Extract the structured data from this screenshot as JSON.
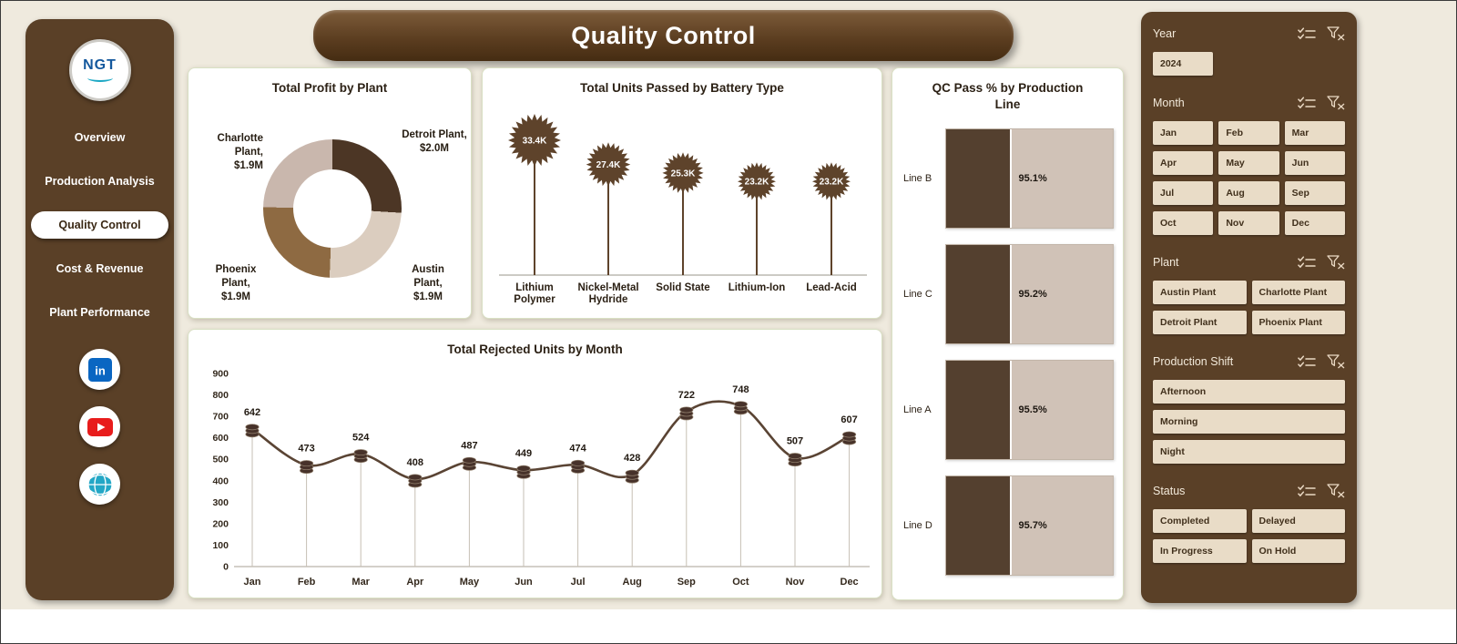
{
  "page": {
    "title": "Quality Control"
  },
  "sidebar": {
    "logo": "NGT",
    "nav": [
      {
        "label": "Overview",
        "active": false
      },
      {
        "label": "Production Analysis",
        "active": false
      },
      {
        "label": "Quality Control",
        "active": true
      },
      {
        "label": "Cost & Revenue",
        "active": false
      },
      {
        "label": "Plant Performance",
        "active": false
      }
    ],
    "social": [
      "linkedin",
      "youtube",
      "website"
    ]
  },
  "chart_data": [
    {
      "type": "pie",
      "title": "Total Profit by Plant",
      "slices": [
        {
          "label": "Detroit Plant,",
          "value_label": "$2.0M",
          "value": 2.0,
          "color": "#4c3625"
        },
        {
          "label": "Austin Plant,",
          "value_label": "$1.9M",
          "value": 1.9,
          "color": "#dbcdbf"
        },
        {
          "label": "Phoenix Plant,",
          "value_label": "$1.9M",
          "value": 1.9,
          "color": "#8e6a42"
        },
        {
          "label": "Charlotte Plant,",
          "value_label": "$1.9M",
          "value": 1.9,
          "color": "#c9b7ad"
        }
      ]
    },
    {
      "type": "lollipop",
      "title": "Total Units Passed by Battery Type",
      "categories": [
        "Lithium Polymer",
        "Nickel-Metal Hydride",
        "Solid State",
        "Lithium-Ion",
        "Lead-Acid"
      ],
      "values": [
        33400,
        27400,
        25300,
        23200,
        23200
      ],
      "value_labels": [
        "33.4K",
        "27.4K",
        "25.3K",
        "23.2K",
        "23.2K"
      ]
    },
    {
      "type": "line",
      "title": "Total Rejected Units by Month",
      "categories": [
        "Jan",
        "Feb",
        "Mar",
        "Apr",
        "May",
        "Jun",
        "Jul",
        "Aug",
        "Sep",
        "Oct",
        "Nov",
        "Dec"
      ],
      "values": [
        642,
        473,
        524,
        408,
        487,
        449,
        474,
        428,
        722,
        748,
        507,
        607
      ],
      "ylim": [
        0,
        900
      ],
      "ytick_step": 100
    },
    {
      "type": "bar",
      "title": "QC Pass % by Production Line",
      "categories": [
        "Line B",
        "Line C",
        "Line A",
        "Line D"
      ],
      "values": [
        95.1,
        95.2,
        95.5,
        95.7
      ],
      "value_labels": [
        "95.1%",
        "95.2%",
        "95.5%",
        "95.7%"
      ]
    }
  ],
  "slicers": [
    {
      "title": "Year",
      "cols": 3,
      "options": [
        "2024"
      ]
    },
    {
      "title": "Month",
      "cols": 3,
      "options": [
        "Jan",
        "Feb",
        "Mar",
        "Apr",
        "May",
        "Jun",
        "Jul",
        "Aug",
        "Sep",
        "Oct",
        "Nov",
        "Dec"
      ]
    },
    {
      "title": "Plant",
      "cols": 2,
      "options": [
        "Austin Plant",
        "Charlotte Plant",
        "Detroit Plant",
        "Phoenix Plant"
      ]
    },
    {
      "title": "Production Shift",
      "cols": 1,
      "options": [
        "Afternoon",
        "Morning",
        "Night"
      ]
    },
    {
      "title": "Status",
      "cols": 2,
      "options": [
        "Completed",
        "Delayed",
        "In Progress",
        "On Hold"
      ]
    }
  ],
  "colors": {
    "panel_brown": "#5a4027",
    "line_color": "#5a4434",
    "stem_color": "#c6bfb4",
    "star_fill": "#5e432b",
    "bar_dark": "#54402f",
    "bar_light": "#d0c2b7",
    "background": "#efeade"
  }
}
